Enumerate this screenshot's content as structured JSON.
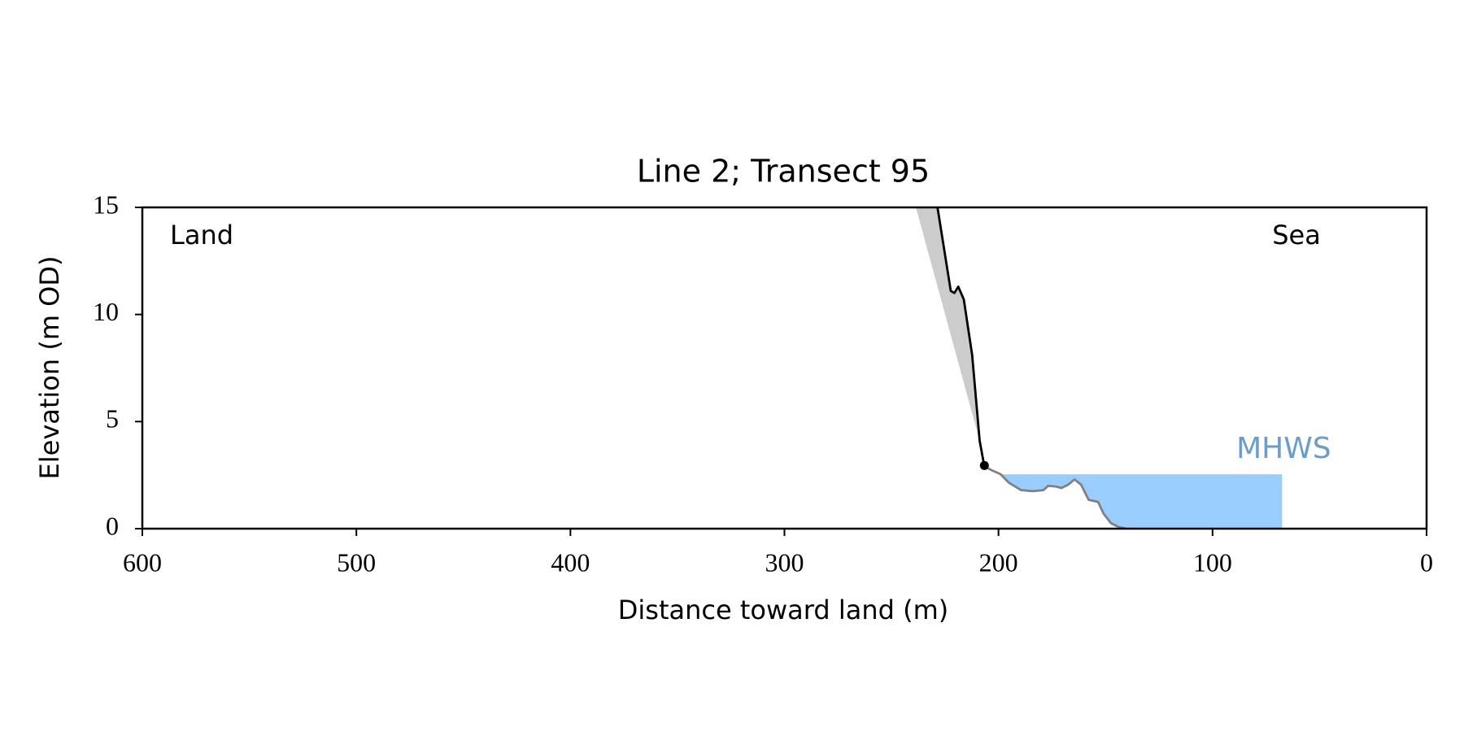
{
  "chart_data": {
    "type": "line",
    "title": "Line 2; Transect 95",
    "xlabel": "Distance toward land (m)",
    "ylabel": "Elevation (m OD)",
    "xlim": [
      600,
      0
    ],
    "ylim": [
      0,
      15
    ],
    "xticks": [
      600,
      500,
      400,
      300,
      200,
      100,
      0
    ],
    "yticks": [
      0,
      5,
      10,
      15
    ],
    "grid": false,
    "annotations": {
      "land": "Land",
      "sea": "Sea",
      "mhws": "MHWS"
    },
    "series": [
      {
        "color": "#000000",
        "x": [
          228.5,
          225.8,
          222.3,
          220.6,
          218.8,
          216.2,
          212.3,
          208.8,
          206.6
        ],
        "values": [
          15,
          13.3,
          11.1,
          11.0,
          11.3,
          10.7,
          8.1,
          4.1,
          2.9
        ]
      },
      {
        "color": "#808080",
        "x": [
          206.6,
          202.6,
          199.1,
          195.2,
          189.5,
          184.2,
          179.0,
          176.8,
          173.3,
          170.6,
          167.5,
          164.5,
          161.4,
          157.9,
          153.5,
          150.9,
          147.4,
          143.9,
          140.4
        ],
        "values": [
          2.9,
          2.7,
          2.55,
          2.15,
          1.8,
          1.75,
          1.8,
          2.0,
          1.97,
          1.9,
          2.05,
          2.3,
          2.05,
          1.35,
          1.25,
          0.7,
          0.25,
          0.08,
          0
        ]
      }
    ],
    "marker": {
      "x": 206.6,
      "y": 2.95,
      "color": "#000000"
    },
    "shade": {
      "color": "#cccccc",
      "x": [
        238.6,
        208.8,
        212.3,
        216.2,
        218.8,
        220.6,
        222.3,
        225.8,
        228.5
      ],
      "y": [
        15,
        4.1,
        8.1,
        10.7,
        11.3,
        11.0,
        11.1,
        13.3,
        15
      ]
    },
    "mhws": {
      "color": "#99ccff",
      "label_color": "#6a9ccc",
      "level": 2.54,
      "x": [
        198.2,
        67.5
      ]
    }
  }
}
